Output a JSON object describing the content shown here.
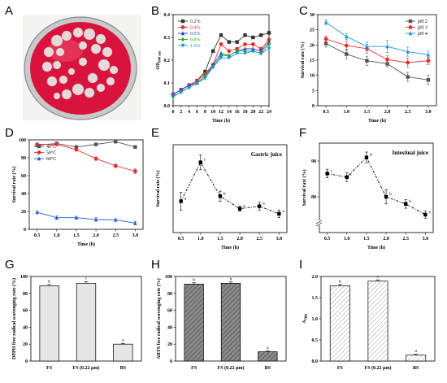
{
  "panel_letters": [
    "A",
    "B",
    "C",
    "D",
    "E",
    "F",
    "G",
    "H",
    "I"
  ],
  "photo": {
    "plate_color": "#d8143e",
    "colony_color": "#e9d8d8"
  },
  "chart_data": [
    {
      "panel": "B",
      "type": "line",
      "xlabel": "Time (h)",
      "ylabel": "OD600 nm",
      "xlim": [
        0,
        24
      ],
      "ylim": [
        0,
        0.4
      ],
      "xticks": [
        0,
        2,
        4,
        6,
        8,
        10,
        12,
        14,
        16,
        18,
        20,
        22,
        24
      ],
      "yticks": [
        0.0,
        0.1,
        0.2,
        0.3,
        0.4
      ],
      "x": [
        0,
        2,
        4,
        6,
        8,
        10,
        12,
        14,
        16,
        18,
        20,
        22,
        24
      ],
      "legend": "top-left",
      "series": [
        {
          "name": "0.2%",
          "color": "#333333",
          "marker": "square",
          "values": [
            0.05,
            0.07,
            0.09,
            0.11,
            0.15,
            0.24,
            0.31,
            0.28,
            0.28,
            0.31,
            0.3,
            0.31,
            0.32
          ]
        },
        {
          "name": "0.4%",
          "color": "#e63030",
          "marker": "circle",
          "values": [
            0.05,
            0.07,
            0.09,
            0.11,
            0.14,
            0.18,
            0.27,
            0.24,
            0.25,
            0.27,
            0.27,
            0.25,
            0.29
          ]
        },
        {
          "name": "0.6%",
          "color": "#2040d8",
          "marker": "triangle",
          "values": [
            0.05,
            0.07,
            0.09,
            0.1,
            0.13,
            0.18,
            0.23,
            0.22,
            0.24,
            0.25,
            0.25,
            0.24,
            0.28
          ]
        },
        {
          "name": "0.8%",
          "color": "#20b020",
          "marker": "diamond",
          "values": [
            0.04,
            0.06,
            0.08,
            0.1,
            0.13,
            0.17,
            0.22,
            0.22,
            0.24,
            0.24,
            0.24,
            0.23,
            0.27
          ]
        },
        {
          "name": "1.0%",
          "color": "#2090d0",
          "marker": "triangle-down",
          "values": [
            0.04,
            0.06,
            0.08,
            0.1,
            0.12,
            0.17,
            0.21,
            0.21,
            0.23,
            0.23,
            0.24,
            0.23,
            0.25
          ]
        }
      ]
    },
    {
      "panel": "C",
      "type": "line",
      "xlabel": "Time (h)",
      "ylabel": "Survival rate (%)",
      "xlim": [
        0.3,
        3.2
      ],
      "ylim": [
        0,
        30
      ],
      "xticks": [
        0.5,
        1.0,
        1.5,
        2.0,
        2.5,
        3.0
      ],
      "yticks": [
        0,
        5,
        10,
        15,
        20,
        25,
        30
      ],
      "x": [
        0.5,
        1.0,
        1.5,
        2.0,
        2.5,
        3.0
      ],
      "legend": "top-right",
      "series": [
        {
          "name": "pH 2",
          "color": "#555555",
          "marker": "square",
          "values": [
            20.5,
            17,
            14.8,
            13.8,
            9.5,
            8.5
          ],
          "err": [
            1.2,
            1.5,
            1.5,
            1,
            1.5,
            1.5
          ]
        },
        {
          "name": "pH 3",
          "color": "#e63030",
          "marker": "circle",
          "values": [
            22,
            19.8,
            18.8,
            15.2,
            14.2,
            14.8
          ],
          "err": [
            1,
            1.5,
            1.5,
            1.2,
            1.5,
            1.2
          ]
        },
        {
          "name": "pH 4",
          "color": "#2090e0",
          "marker": "triangle",
          "values": [
            27.5,
            22.8,
            19.5,
            19.5,
            17.8,
            16.8
          ],
          "err": [
            0.8,
            1,
            1.5,
            2,
            1.5,
            1.2
          ]
        }
      ]
    },
    {
      "panel": "D",
      "type": "line",
      "xlabel": "Time (h)",
      "ylabel": "Survival rate (%)",
      "xlim": [
        0.3,
        3.2
      ],
      "ylim": [
        0,
        100
      ],
      "xticks": [
        0.5,
        1.0,
        1.5,
        2.0,
        2.5,
        3.0
      ],
      "yticks": [
        0,
        20,
        40,
        60,
        80,
        100
      ],
      "x": [
        0.5,
        1.0,
        1.5,
        2.0,
        2.5,
        3.0
      ],
      "legend": "top-left",
      "series": [
        {
          "name": "40°C",
          "color": "#555555",
          "marker": "square",
          "values": [
            94,
            96,
            92,
            95,
            98,
            92
          ],
          "err": [
            1,
            1,
            1,
            1,
            1,
            1
          ]
        },
        {
          "name": "50°C",
          "color": "#e63030",
          "marker": "circle",
          "values": [
            95,
            95,
            89,
            79,
            71,
            65
          ],
          "err": [
            1,
            1,
            1.5,
            2,
            2,
            2.5
          ]
        },
        {
          "name": "60°C",
          "color": "#2060d0",
          "marker": "triangle",
          "values": [
            19,
            13,
            13,
            11,
            10.5,
            7
          ],
          "err": [
            1.5,
            2,
            1.5,
            2,
            1.5,
            2
          ]
        }
      ]
    },
    {
      "panel": "E",
      "type": "line",
      "title": "Gastric juice",
      "xlabel": "Time (h)",
      "ylabel": "Survival rate (%)",
      "xlim": [
        0.3,
        3.2
      ],
      "ylim": [
        0,
        35
      ],
      "xticks": [
        0.5,
        1.0,
        1.5,
        2.0,
        2.5,
        3.0
      ],
      "x": [
        0.5,
        1.0,
        1.5,
        2.0,
        2.5,
        3.0
      ],
      "series": [
        {
          "values": [
            12.5,
            28,
            14.5,
            9.5,
            10.5,
            7.5
          ],
          "err": [
            3.5,
            3,
            2,
            1,
            1.5,
            1.5
          ],
          "sig": [
            "a",
            "c",
            "b",
            "a",
            "a",
            "a"
          ]
        }
      ]
    },
    {
      "panel": "F",
      "type": "line",
      "title": "Intestinal juice",
      "xlabel": "Time (h)",
      "ylabel": "Survival rate (%)",
      "xlim": [
        0.3,
        3.2
      ],
      "ylim": [
        70,
        95
      ],
      "xticks": [
        0.5,
        1.0,
        1.5,
        2.0,
        2.5,
        3.0
      ],
      "yticks": [
        80,
        90
      ],
      "x": [
        0.5,
        1.0,
        1.5,
        2.0,
        2.5,
        3.0
      ],
      "series": [
        {
          "values": [
            86.5,
            85.5,
            91,
            80,
            78,
            75
          ],
          "err": [
            1.2,
            1.2,
            1.5,
            2,
            1.2,
            1
          ],
          "sig": [
            "c",
            "c",
            "d",
            "b",
            "b",
            "a"
          ]
        }
      ]
    },
    {
      "panel": "G",
      "type": "bar",
      "ylabel": "DPPH free radical scavenging rate (%)",
      "categories": [
        "FS",
        "FS (0.22 μm)",
        "BS"
      ],
      "values": [
        89,
        92,
        20
      ],
      "err": [
        1.5,
        2,
        1
      ],
      "sig": [
        "b",
        "c",
        "a"
      ],
      "ylim": [
        0,
        100
      ],
      "yticks": [
        0,
        20,
        40,
        60,
        80,
        100
      ]
    },
    {
      "panel": "H",
      "type": "bar",
      "ylabel": "ABTS free radical scavenging rate (%)",
      "categories": [
        "FS",
        "FS (0.22 μm)",
        "BS"
      ],
      "values": [
        91,
        92,
        11
      ],
      "err": [
        1.5,
        1.5,
        1
      ],
      "sig": [
        "b",
        "b",
        "a"
      ],
      "ylim": [
        0,
        100
      ],
      "yticks": [
        0,
        20,
        40,
        60,
        80,
        100
      ]
    },
    {
      "panel": "I",
      "type": "bar",
      "ylabel": "A700",
      "categories": [
        "FS",
        "FS (0.22 μm)",
        "BS"
      ],
      "values": [
        1.78,
        1.89,
        0.14
      ],
      "err": [
        0.03,
        0.03,
        0.02
      ],
      "sig": [
        "b",
        "c",
        "a"
      ],
      "ylim": [
        0,
        2.0
      ],
      "yticks": [
        0.0,
        0.5,
        1.0,
        1.5,
        2.0
      ]
    }
  ]
}
